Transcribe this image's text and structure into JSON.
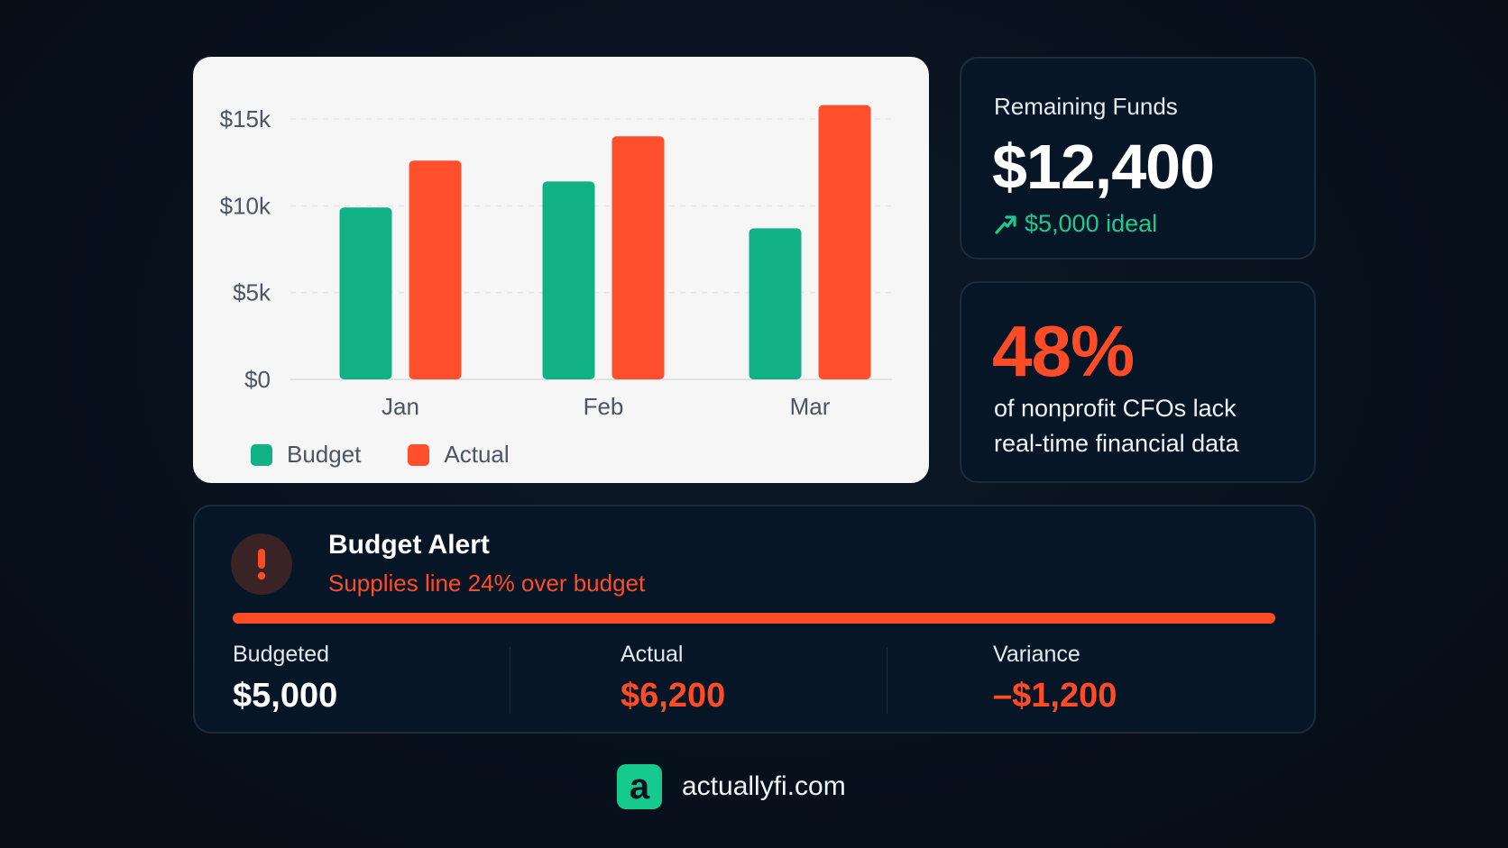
{
  "colors": {
    "budget": "#10b185",
    "actual": "#ff4f2c",
    "accent_green": "#1ec98f",
    "alert_red": "#ff4b26"
  },
  "chart_data": {
    "type": "bar",
    "categories": [
      "Jan",
      "Feb",
      "Mar"
    ],
    "series": [
      {
        "name": "Budget",
        "values": [
          9900,
          11400,
          8700
        ]
      },
      {
        "name": "Actual",
        "values": [
          12600,
          14000,
          15800
        ]
      }
    ],
    "ylim": [
      0,
      15000
    ],
    "yticks": [
      0,
      5000,
      10000,
      15000
    ],
    "ytick_labels": [
      "$0",
      "$5k",
      "$10k",
      "$15k"
    ],
    "grid": true,
    "legend_placement": "bottom-left"
  },
  "funds": {
    "label": "Remaining Funds",
    "value": "$12,400",
    "ideal_icon": "trend-up-arrow-icon",
    "ideal": "$5,000 ideal"
  },
  "stat": {
    "percent": "48%",
    "description": "of nonprofit CFOs lack real-time financial data"
  },
  "alert": {
    "icon": "exclamation-icon",
    "title": "Budget Alert",
    "subtitle": "Supplies line 24% over budget",
    "progress_percent": 100,
    "metrics": [
      {
        "label": "Budgeted",
        "value": "$5,000"
      },
      {
        "label": "Actual",
        "value": "$6,200"
      },
      {
        "label": "Variance",
        "value": "–$1,200"
      }
    ]
  },
  "footer": {
    "logo_letter": "a",
    "site": "actuallyfi.com"
  }
}
